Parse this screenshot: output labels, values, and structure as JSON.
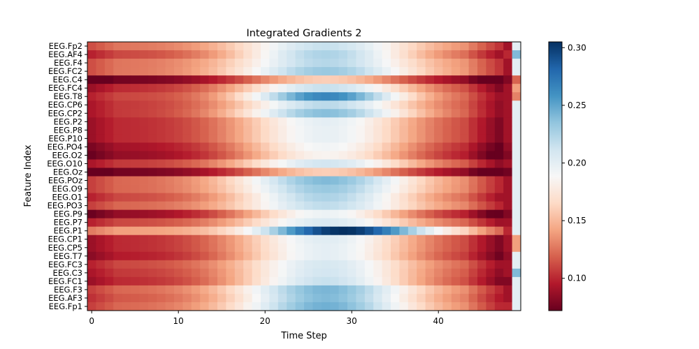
{
  "chart_data": {
    "type": "heatmap",
    "title": "Integrated Gradients 2",
    "xlabel": "Time Step",
    "ylabel": "Feature Index",
    "x_ticks": [
      0,
      10,
      20,
      30,
      40
    ],
    "x_range": [
      -0.5,
      49.5
    ],
    "y_labels": [
      "EEG.Fp2",
      "EEG.AF4",
      "EEG.F4",
      "EEG.FC2",
      "EEG.C4",
      "EEG.FC4",
      "EEG.T8",
      "EEG.CP6",
      "EEG.CP2",
      "EEG.P2",
      "EEG.P8",
      "EEG.P10",
      "EEG.PO4",
      "EEG.O2",
      "EEG.O10",
      "EEG.Oz",
      "EEG.POz",
      "EEG.O9",
      "EEG.O1",
      "EEG.PO3",
      "EEG.P9",
      "EEG.P7",
      "EEG.P1",
      "EEG.CP1",
      "EEG.CP5",
      "EEG.T7",
      "EEG.FC3",
      "EEG.C3",
      "EEG.FC1",
      "EEG.F3",
      "EEG.AF3",
      "EEG.Fp1"
    ],
    "colormap": "RdBu",
    "colorbar": {
      "range": [
        0.072,
        0.305
      ],
      "ticks": [
        "0.10",
        "0.15",
        "0.20",
        "0.25",
        "0.30"
      ]
    },
    "row_profile": {
      "peak": [
        0.215,
        0.225,
        0.222,
        0.232,
        0.16,
        0.215,
        0.265,
        0.22,
        0.238,
        0.2,
        0.198,
        0.198,
        0.192,
        0.185,
        0.21,
        0.16,
        0.24,
        0.232,
        0.225,
        0.218,
        0.195,
        0.205,
        0.305,
        0.202,
        0.2,
        0.2,
        0.208,
        0.21,
        0.215,
        0.242,
        0.24,
        0.245
      ],
      "edge": [
        0.125,
        0.11,
        0.125,
        0.125,
        0.075,
        0.1,
        0.11,
        0.105,
        0.105,
        0.1,
        0.1,
        0.1,
        0.09,
        0.085,
        0.105,
        0.075,
        0.12,
        0.12,
        0.11,
        0.12,
        0.085,
        0.11,
        0.14,
        0.1,
        0.1,
        0.095,
        0.11,
        0.105,
        0.1,
        0.12,
        0.115,
        0.12
      ],
      "center": [
        27,
        27,
        27,
        27,
        27,
        27,
        27,
        27,
        27,
        27,
        27,
        27,
        27,
        27,
        27,
        27,
        27,
        27,
        27,
        27,
        27,
        27,
        29,
        27,
        27,
        27,
        27,
        27,
        27,
        27,
        27,
        27
      ],
      "width": [
        11,
        11,
        11,
        11,
        11,
        11,
        10,
        11,
        11,
        11,
        11,
        11,
        11,
        11,
        11,
        11,
        11,
        11,
        11,
        11,
        11,
        11,
        10,
        11,
        11,
        11,
        11,
        11,
        11,
        11,
        11,
        11
      ],
      "col48": [
        0.2,
        0.24,
        0.2,
        0.2,
        0.12,
        0.14,
        0.13,
        0.2,
        0.2,
        0.2,
        0.2,
        0.2,
        0.2,
        0.2,
        0.2,
        0.2,
        0.2,
        0.2,
        0.2,
        0.2,
        0.2,
        0.2,
        0.2,
        0.14,
        0.14,
        0.2,
        0.2,
        0.24,
        0.2,
        0.2,
        0.2,
        0.2
      ],
      "col47": [
        0.09,
        0.1,
        0.09,
        0.09,
        0.08,
        0.09,
        0.09,
        0.09,
        0.09,
        0.09,
        0.09,
        0.09,
        0.085,
        0.08,
        0.09,
        0.075,
        0.09,
        0.09,
        0.09,
        0.09,
        0.08,
        0.09,
        0.1,
        0.09,
        0.09,
        0.085,
        0.09,
        0.09,
        0.08,
        0.09,
        0.09,
        0.1
      ]
    }
  }
}
